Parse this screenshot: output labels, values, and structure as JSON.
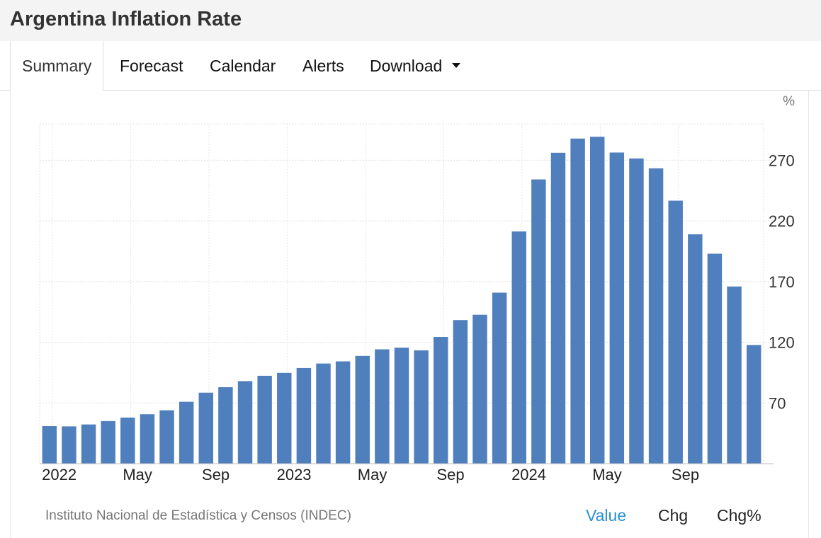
{
  "header": {
    "title": "Argentina Inflation Rate"
  },
  "tabs": [
    {
      "label": "Summary",
      "active": true
    },
    {
      "label": "Forecast"
    },
    {
      "label": "Calendar"
    },
    {
      "label": "Alerts"
    },
    {
      "label": "Download",
      "has_dropdown": true
    }
  ],
  "chart_data": {
    "type": "bar",
    "unit_label": "%",
    "ylim": [
      20,
      300
    ],
    "y_ticks": [
      70,
      120,
      170,
      220,
      270
    ],
    "grid": true,
    "bar_color": "#4f7fbd",
    "x_tick_labels": [
      {
        "label": "2022",
        "index": 1
      },
      {
        "label": "May",
        "index": 5
      },
      {
        "label": "Sep",
        "index": 9
      },
      {
        "label": "2023",
        "index": 13
      },
      {
        "label": "May",
        "index": 17
      },
      {
        "label": "Sep",
        "index": 21
      },
      {
        "label": "2024",
        "index": 25
      },
      {
        "label": "May",
        "index": 29
      },
      {
        "label": "Sep",
        "index": 33
      }
    ],
    "categories": [
      "2021-12",
      "2022-01",
      "2022-02",
      "2022-03",
      "2022-04",
      "2022-05",
      "2022-06",
      "2022-07",
      "2022-08",
      "2022-09",
      "2022-10",
      "2022-11",
      "2022-12",
      "2023-01",
      "2023-02",
      "2023-03",
      "2023-04",
      "2023-05",
      "2023-06",
      "2023-07",
      "2023-08",
      "2023-09",
      "2023-10",
      "2023-11",
      "2023-12",
      "2024-01",
      "2024-02",
      "2024-03",
      "2024-04",
      "2024-05",
      "2024-06",
      "2024-07",
      "2024-08",
      "2024-09",
      "2024-10",
      "2024-11",
      "2024-12"
    ],
    "values": [
      50.9,
      50.7,
      52.3,
      55.1,
      58.0,
      60.7,
      64.0,
      71.0,
      78.5,
      83.0,
      88.0,
      92.4,
      94.8,
      98.8,
      102.5,
      104.3,
      108.8,
      114.2,
      115.6,
      113.4,
      124.4,
      138.3,
      142.7,
      160.9,
      211.4,
      254.2,
      276.2,
      287.9,
      289.4,
      276.4,
      271.5,
      263.4,
      236.7,
      209.0,
      193.0,
      166.0,
      117.8
    ]
  },
  "footer": {
    "source": "Instituto Nacional de Estadística y Censos (INDEC)",
    "toggles": [
      {
        "label": "Value",
        "active": true
      },
      {
        "label": "Chg"
      },
      {
        "label": "Chg%"
      }
    ]
  }
}
